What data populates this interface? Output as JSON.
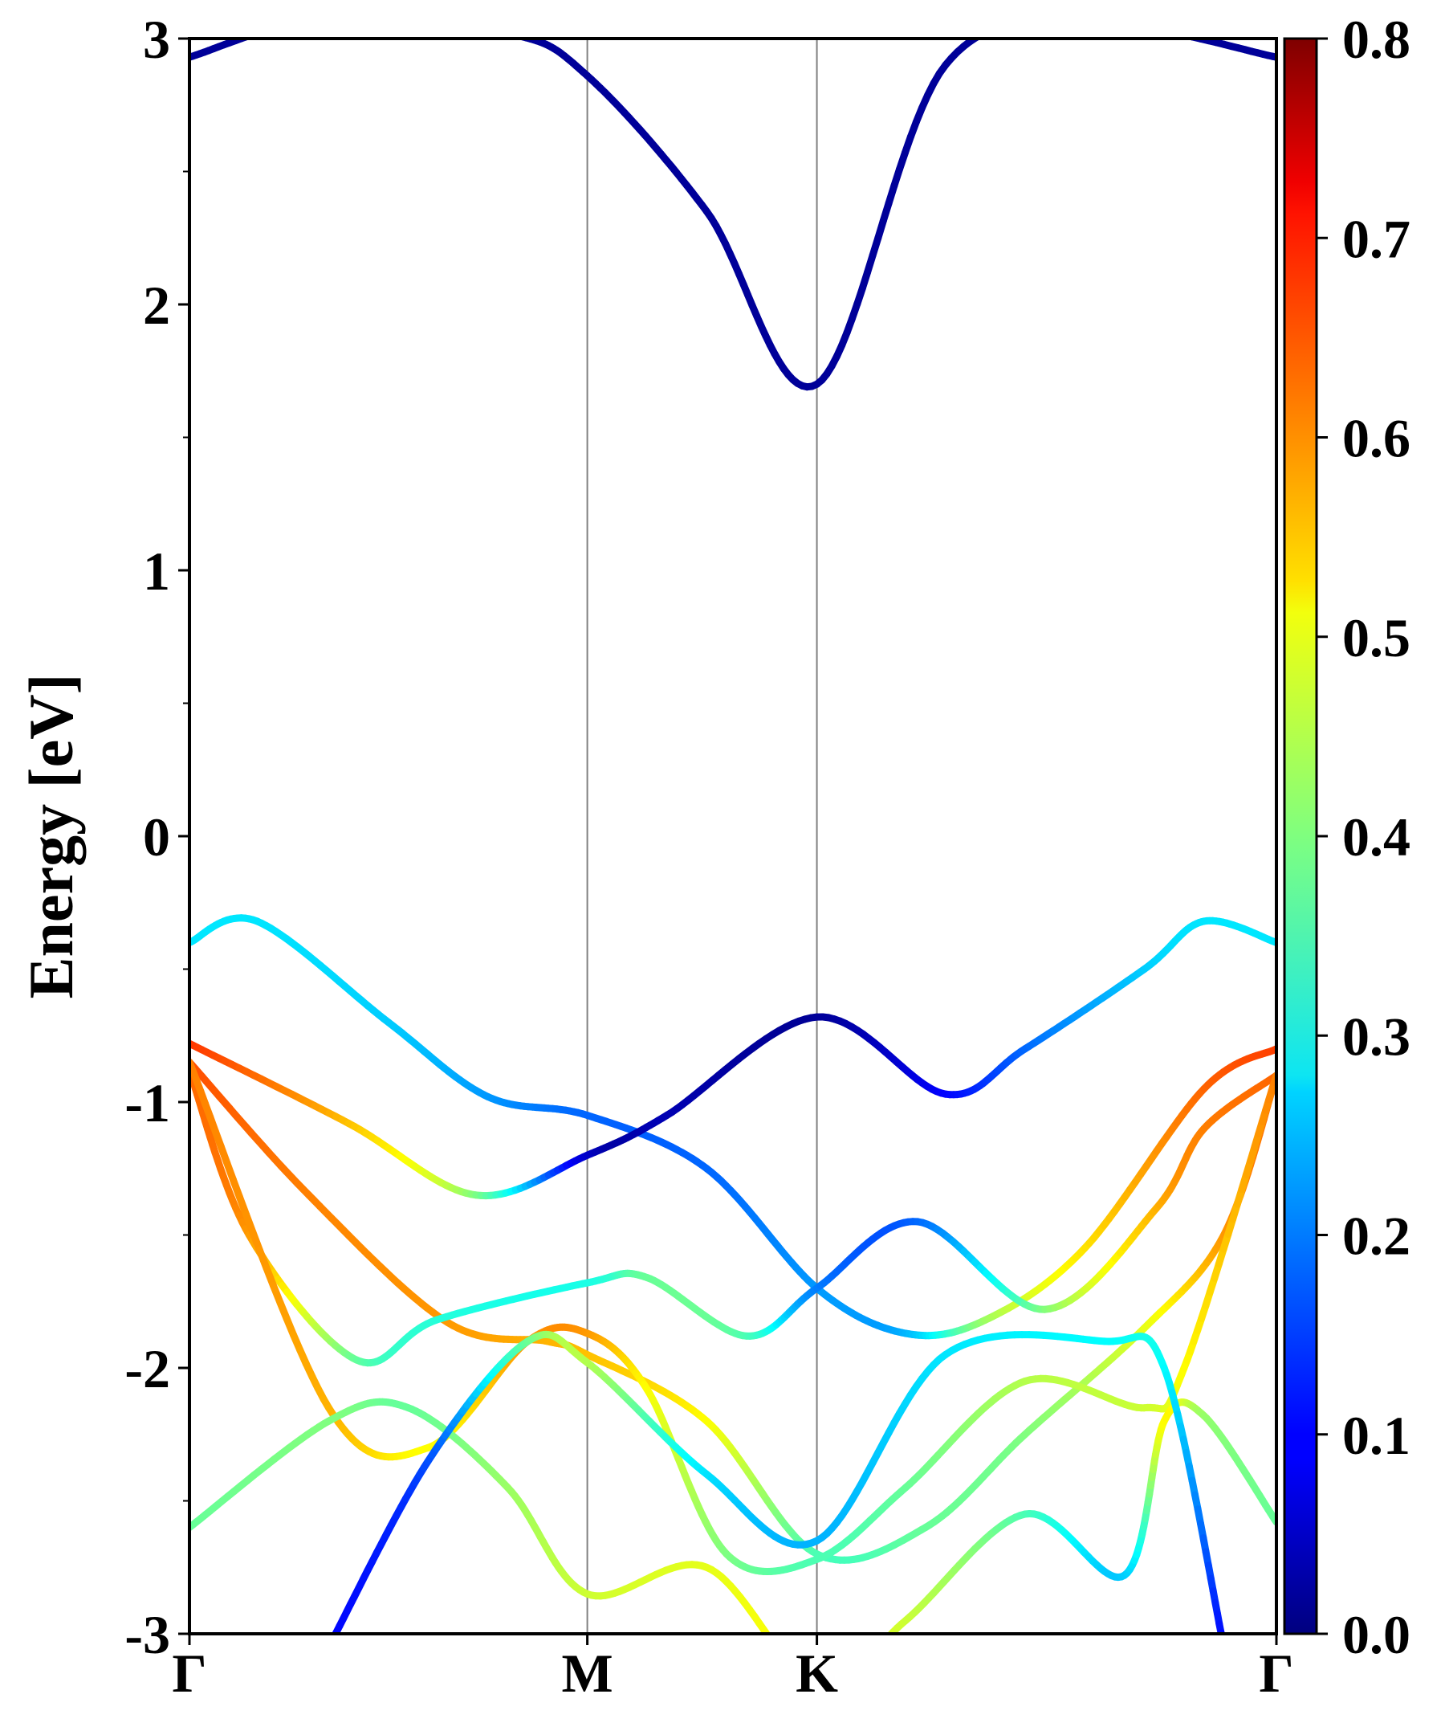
{
  "chart_data": {
    "type": "line",
    "ylabel": "Energy [eV]",
    "xlabel": "",
    "ylim": [
      -3,
      3
    ],
    "y_ticks": [
      "-3",
      "-2",
      "-1",
      "0",
      "1",
      "2",
      "3"
    ],
    "y_tick_values": [
      -3,
      -2,
      -1,
      0,
      1,
      2,
      3
    ],
    "k_ticks": [
      {
        "label": "Γ",
        "k": 0.0
      },
      {
        "label": "M",
        "k": 1.0
      },
      {
        "label": "K",
        "k": 1.577
      },
      {
        "label": "Γ",
        "k": 2.732
      }
    ],
    "colorbar": {
      "colormap": "jet",
      "range": [
        0.0,
        0.8
      ],
      "ticks": [
        "0.0",
        "0.1",
        "0.2",
        "0.3",
        "0.4",
        "0.5",
        "0.6",
        "0.7",
        "0.8"
      ],
      "tick_values": [
        0.0,
        0.1,
        0.2,
        0.3,
        0.4,
        0.5,
        0.6,
        0.7,
        0.8
      ]
    },
    "series": [
      {
        "k": [
          0,
          0.35,
          0.8,
          1.0,
          1.3,
          1.577,
          1.9,
          2.3,
          2.732
        ],
        "energy": [
          2.93,
          3.08,
          3.02,
          2.86,
          2.35,
          1.7,
          2.9,
          3.05,
          2.93
        ],
        "weight": [
          0.02,
          0.02,
          0.02,
          0.02,
          0.02,
          0.02,
          0.02,
          0.02,
          0.02
        ]
      },
      {
        "k": [
          0,
          0.17,
          0.5,
          0.75,
          1.0,
          1.3,
          1.577,
          1.8,
          2.0,
          2.25,
          2.55,
          2.732
        ],
        "energy": [
          -0.4,
          -0.32,
          -0.7,
          -0.98,
          -1.05,
          -1.25,
          -1.7,
          -1.87,
          -1.82,
          -1.55,
          -0.95,
          -0.8
        ],
        "weight": [
          0.28,
          0.28,
          0.26,
          0.22,
          0.18,
          0.18,
          0.22,
          0.24,
          0.42,
          0.52,
          0.62,
          0.65
        ]
      },
      {
        "k": [
          0,
          0.4,
          0.72,
          1.0,
          1.2,
          1.577,
          1.9,
          2.1,
          2.4,
          2.55,
          2.732
        ],
        "energy": [
          -0.78,
          -1.08,
          -1.35,
          -1.2,
          -1.05,
          -0.68,
          -0.97,
          -0.8,
          -0.5,
          -0.32,
          -0.4
        ],
        "weight": [
          0.66,
          0.55,
          0.4,
          0.06,
          0.04,
          0.02,
          0.1,
          0.18,
          0.26,
          0.28,
          0.28
        ]
      },
      {
        "k": [
          0,
          0.3,
          0.65,
          0.9,
          1.0,
          1.3,
          1.577,
          1.85,
          2.1,
          2.4,
          2.6,
          2.732
        ],
        "energy": [
          -0.85,
          -1.35,
          -1.83,
          -1.9,
          -1.95,
          -2.2,
          -2.7,
          -2.6,
          -2.25,
          -1.85,
          -1.5,
          -0.9
        ],
        "weight": [
          0.64,
          0.6,
          0.58,
          0.56,
          0.55,
          0.5,
          0.36,
          0.38,
          0.4,
          0.48,
          0.58,
          0.62
        ]
      },
      {
        "k": [
          0,
          0.15,
          0.42,
          0.62,
          1.0,
          1.15,
          1.4,
          1.577,
          1.83,
          2.15,
          2.43,
          2.55,
          2.732
        ],
        "energy": [
          -0.88,
          -1.5,
          -1.97,
          -1.82,
          -1.68,
          -1.66,
          -1.88,
          -1.7,
          -1.45,
          -1.78,
          -1.4,
          -1.1,
          -0.9
        ],
        "weight": [
          0.62,
          0.58,
          0.38,
          0.33,
          0.32,
          0.38,
          0.36,
          0.2,
          0.18,
          0.4,
          0.56,
          0.6,
          0.62
        ]
      },
      {
        "k": [
          0,
          0.35,
          0.6,
          0.85,
          1.0,
          1.15,
          1.35,
          1.577,
          1.8,
          2.1,
          2.4,
          2.5,
          2.732
        ],
        "energy": [
          -0.85,
          -2.15,
          -2.3,
          -1.9,
          -1.87,
          -2.08,
          -2.7,
          -2.72,
          -2.45,
          -2.05,
          -2.15,
          -2.0,
          -0.9
        ],
        "weight": [
          0.6,
          0.56,
          0.5,
          0.58,
          0.58,
          0.5,
          0.4,
          0.36,
          0.38,
          0.44,
          0.46,
          0.5,
          0.6
        ]
      },
      {
        "k": [
          0,
          0.35,
          0.55,
          0.8,
          1.0,
          1.3,
          1.577,
          1.8,
          2.1,
          2.35,
          2.45,
          2.55,
          2.732
        ],
        "energy": [
          -2.6,
          -2.2,
          -2.15,
          -2.45,
          -2.85,
          -2.75,
          -3.2,
          -2.95,
          -2.55,
          -2.78,
          -2.2,
          -2.18,
          -2.58
        ],
        "weight": [
          0.38,
          0.4,
          0.38,
          0.42,
          0.46,
          0.48,
          0.5,
          0.46,
          0.36,
          0.26,
          0.5,
          0.42,
          0.38
        ]
      },
      {
        "k": [
          0.35,
          0.6,
          0.85,
          1.0,
          1.3,
          1.577,
          1.9,
          2.3,
          2.45,
          2.6
        ],
        "energy": [
          -3.05,
          -2.35,
          -1.9,
          -1.98,
          -2.4,
          -2.65,
          -1.95,
          -1.9,
          -2.0,
          -3.05
        ],
        "weight": [
          0.1,
          0.16,
          0.38,
          0.44,
          0.28,
          0.24,
          0.28,
          0.3,
          0.3,
          0.1
        ]
      }
    ]
  }
}
